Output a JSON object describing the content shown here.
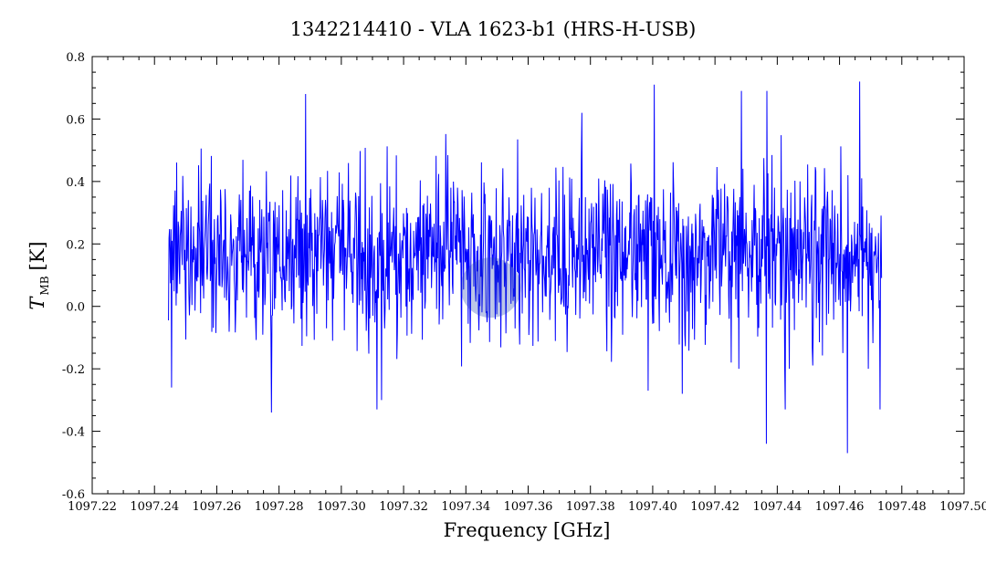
{
  "chart_data": {
    "type": "line",
    "title": "1342214410 - VLA 1623-b1 (HRS-H-USB)",
    "xlabel": "Frequency [GHz]",
    "ylabel_main": "T",
    "ylabel_sub": "MB",
    "ylabel_unit": "[K]",
    "xlim": [
      1097.22,
      1097.5
    ],
    "ylim": [
      -0.6,
      0.8
    ],
    "x_ticks": [
      "1097.22",
      "1097.24",
      "1097.26",
      "1097.28",
      "1097.30",
      "1097.32",
      "1097.34",
      "1097.36",
      "1097.38",
      "1097.40",
      "1097.42",
      "1097.44",
      "1097.46",
      "1097.48",
      "1097.50"
    ],
    "y_ticks": [
      "-0.6",
      "-0.4",
      "-0.2",
      "0.0",
      "0.2",
      "0.4",
      "0.6",
      "0.8"
    ],
    "series": [
      {
        "color": "#0000ff",
        "x_start": 1097.2445,
        "x_end": 1097.4735,
        "mean": 0.17,
        "noise_sigma": 0.13,
        "n_points": 1400,
        "notable_points": [
          {
            "x": 1097.2455,
            "y": -0.26
          },
          {
            "x": 1097.2775,
            "y": -0.34
          },
          {
            "x": 1097.2885,
            "y": 0.68
          },
          {
            "x": 1097.3115,
            "y": -0.33
          },
          {
            "x": 1097.313,
            "y": -0.3
          },
          {
            "x": 1097.3985,
            "y": -0.27
          },
          {
            "x": 1097.4005,
            "y": 0.71
          },
          {
            "x": 1097.4095,
            "y": -0.28
          },
          {
            "x": 1097.4285,
            "y": 0.69
          },
          {
            "x": 1097.4365,
            "y": -0.44
          },
          {
            "x": 1097.4365,
            "y": 0.69
          },
          {
            "x": 1097.4425,
            "y": -0.33
          },
          {
            "x": 1097.4625,
            "y": -0.47
          },
          {
            "x": 1097.4665,
            "y": 0.72
          },
          {
            "x": 1097.473,
            "y": -0.33
          }
        ]
      }
    ],
    "highlight": {
      "x": 1097.348,
      "y": 0.06,
      "color": "#1e3fb4"
    },
    "grid": false,
    "legend": "none"
  }
}
